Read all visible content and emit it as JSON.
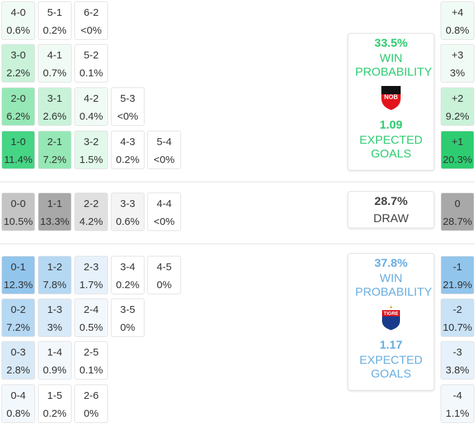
{
  "home": {
    "accent": "#2ecc71",
    "rows": [
      [
        {
          "score": "4-0",
          "prob": "0.6%",
          "color": "#f1fbf5"
        },
        {
          "score": "5-1",
          "prob": "0.2%",
          "color": "#ffffff"
        },
        {
          "score": "6-2",
          "prob": "<0%",
          "color": "#ffffff"
        }
      ],
      [
        {
          "score": "3-0",
          "prob": "2.2%",
          "color": "#c9f2d9"
        },
        {
          "score": "4-1",
          "prob": "0.7%",
          "color": "#f1fbf5"
        },
        {
          "score": "5-2",
          "prob": "0.1%",
          "color": "#ffffff"
        }
      ],
      [
        {
          "score": "2-0",
          "prob": "6.2%",
          "color": "#95e8b5"
        },
        {
          "score": "3-1",
          "prob": "2.6%",
          "color": "#c9f2d9"
        },
        {
          "score": "4-2",
          "prob": "0.4%",
          "color": "#f1fbf5"
        },
        {
          "score": "5-3",
          "prob": "<0%",
          "color": "#ffffff"
        }
      ],
      [
        {
          "score": "1-0",
          "prob": "11.4%",
          "color": "#45d585"
        },
        {
          "score": "2-1",
          "prob": "7.2%",
          "color": "#95e8b5"
        },
        {
          "score": "3-2",
          "prob": "1.5%",
          "color": "#e1f8ea"
        },
        {
          "score": "4-3",
          "prob": "0.2%",
          "color": "#ffffff"
        },
        {
          "score": "5-4",
          "prob": "<0%",
          "color": "#ffffff"
        }
      ]
    ],
    "card": {
      "probability": "33.5%",
      "label": "WIN PROBABILITY",
      "logo": "NOB",
      "xg": "1.09",
      "xg_label": "EXPECTED GOALS"
    }
  },
  "draw": {
    "accent": "#444444",
    "rows": [
      [
        {
          "score": "0-0",
          "prob": "10.5%",
          "color": "#c4c4c4"
        },
        {
          "score": "1-1",
          "prob": "13.3%",
          "color": "#a8a8a8"
        },
        {
          "score": "2-2",
          "prob": "4.2%",
          "color": "#e0e0e0"
        },
        {
          "score": "3-3",
          "prob": "0.6%",
          "color": "#f4f4f4"
        },
        {
          "score": "4-4",
          "prob": "<0%",
          "color": "#ffffff"
        }
      ]
    ],
    "card": {
      "probability": "28.7%",
      "label": "DRAW"
    }
  },
  "away": {
    "accent": "#6aaee0",
    "rows": [
      [
        {
          "score": "0-1",
          "prob": "12.3%",
          "color": "#92c5ec"
        },
        {
          "score": "1-2",
          "prob": "7.8%",
          "color": "#b5d8f3"
        },
        {
          "score": "2-3",
          "prob": "1.7%",
          "color": "#e6f1fb"
        },
        {
          "score": "3-4",
          "prob": "0.2%",
          "color": "#ffffff"
        },
        {
          "score": "4-5",
          "prob": "0%",
          "color": "#ffffff"
        }
      ],
      [
        {
          "score": "0-2",
          "prob": "7.2%",
          "color": "#b5d8f3"
        },
        {
          "score": "1-3",
          "prob": "3%",
          "color": "#d8e9f8"
        },
        {
          "score": "2-4",
          "prob": "0.5%",
          "color": "#f3f8fd"
        },
        {
          "score": "3-5",
          "prob": "0%",
          "color": "#ffffff"
        }
      ],
      [
        {
          "score": "0-3",
          "prob": "2.8%",
          "color": "#d8e9f8"
        },
        {
          "score": "1-4",
          "prob": "0.9%",
          "color": "#f3f8fd"
        },
        {
          "score": "2-5",
          "prob": "0.1%",
          "color": "#ffffff"
        }
      ],
      [
        {
          "score": "0-4",
          "prob": "0.8%",
          "color": "#f3f8fd"
        },
        {
          "score": "1-5",
          "prob": "0.2%",
          "color": "#ffffff"
        },
        {
          "score": "2-6",
          "prob": "0%",
          "color": "#ffffff"
        }
      ]
    ],
    "card": {
      "probability": "37.8%",
      "label": "WIN PROBABILITY",
      "logo": "TIGRE",
      "xg": "1.17",
      "xg_label": "EXPECTED GOALS"
    }
  },
  "margins": [
    {
      "label": "+4",
      "prob": "0.8%",
      "color": "#f1fbf5"
    },
    {
      "label": "+3",
      "prob": "3%",
      "color": "#f1fbf5"
    },
    {
      "label": "+2",
      "prob": "9.2%",
      "color": "#c9f2d9"
    },
    {
      "label": "+1",
      "prob": "20.3%",
      "color": "#2ecc71"
    },
    {
      "label": "0",
      "prob": "28.7%",
      "color": "#a8a8a8"
    },
    {
      "label": "-1",
      "prob": "21.9%",
      "color": "#92c5ec"
    },
    {
      "label": "-2",
      "prob": "10.7%",
      "color": "#c9e2f6"
    },
    {
      "label": "-3",
      "prob": "3.8%",
      "color": "#e6f1fb"
    },
    {
      "label": "-4",
      "prob": "1.1%",
      "color": "#f3f8fd"
    }
  ]
}
